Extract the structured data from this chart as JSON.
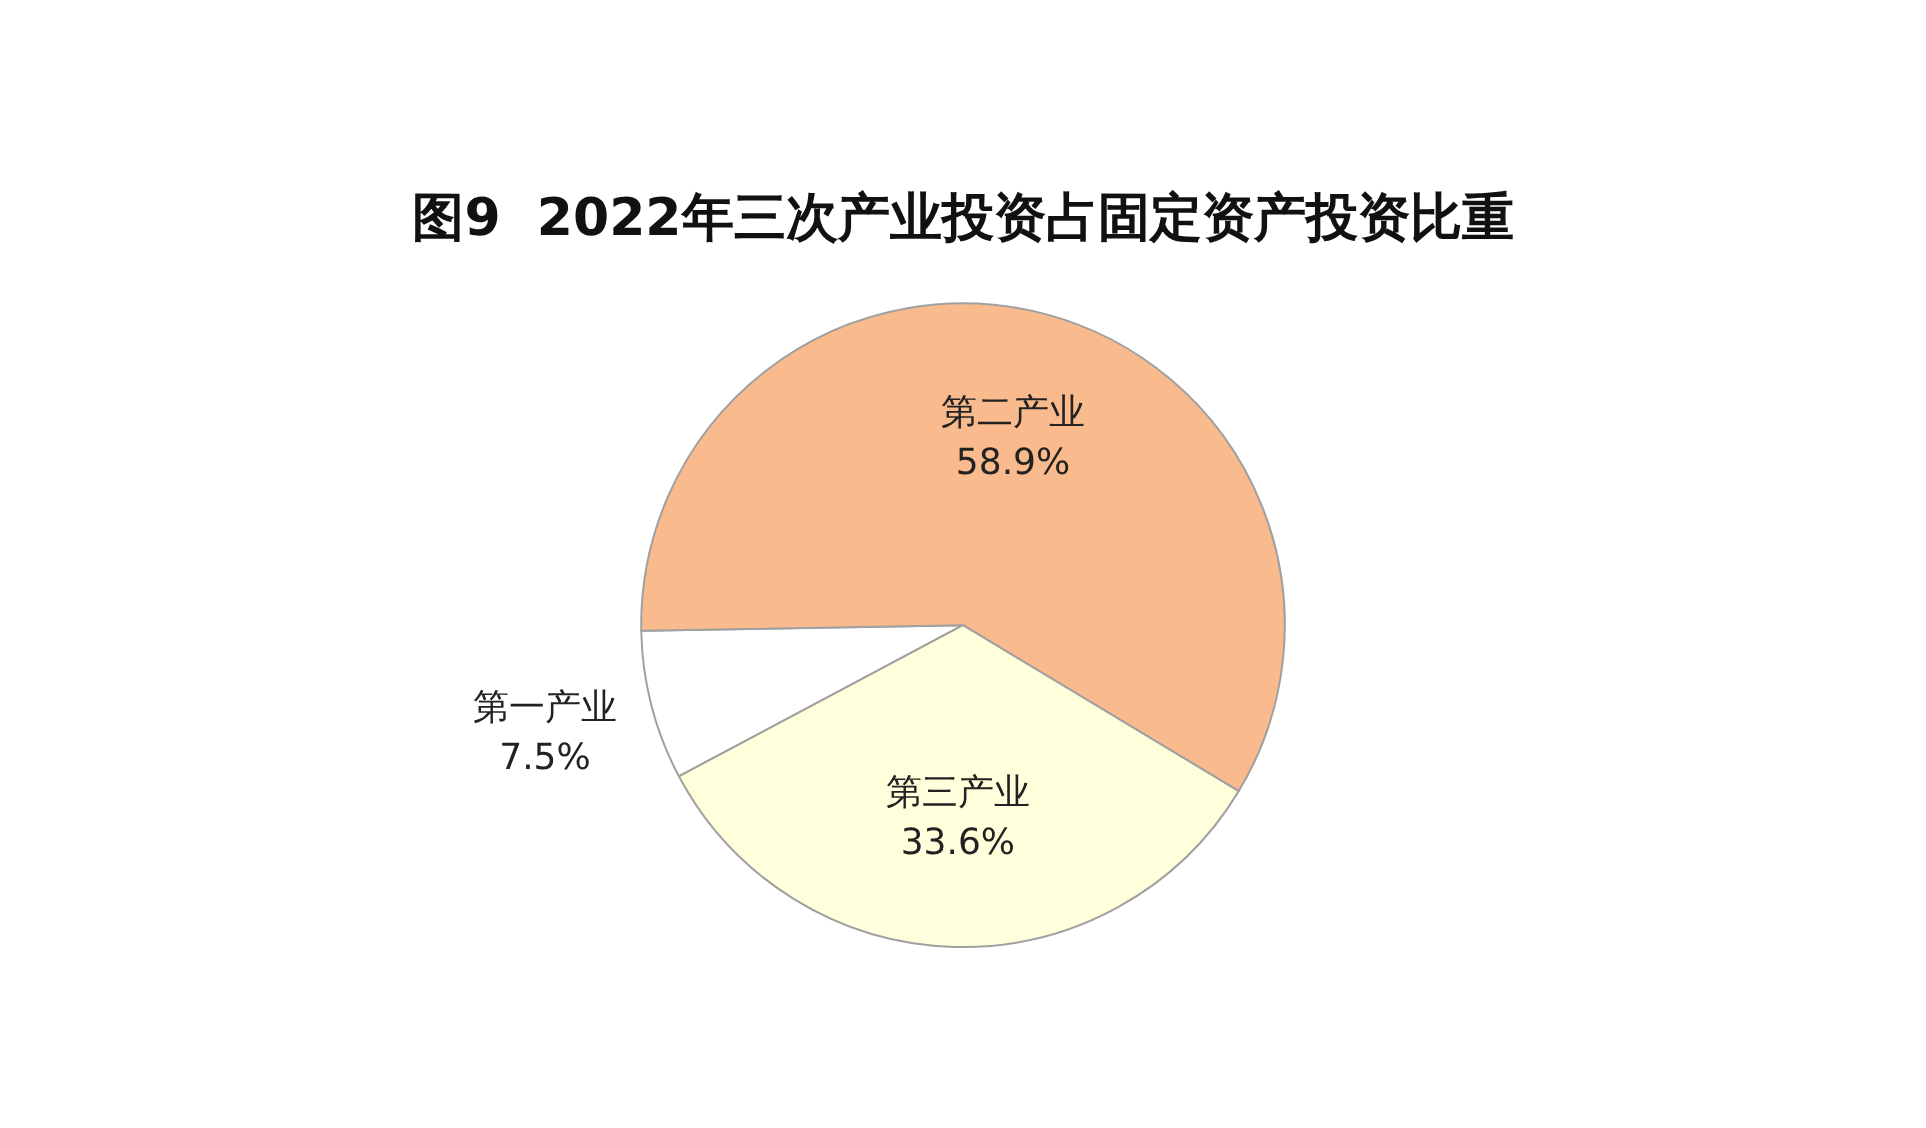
{
  "chart_data": {
    "type": "pie",
    "title": "图9  2022年三次产业投资占固定资产投资比重",
    "categories": [
      "第一产业",
      "第二产业",
      "第三产业"
    ],
    "values": [
      7.5,
      58.9,
      33.6
    ],
    "value_labels": [
      "7.5%",
      "58.9%",
      "33.6%"
    ],
    "colors": [
      "#ffffff",
      "#f9bb8e",
      "#ffffdc"
    ],
    "legend": false
  }
}
